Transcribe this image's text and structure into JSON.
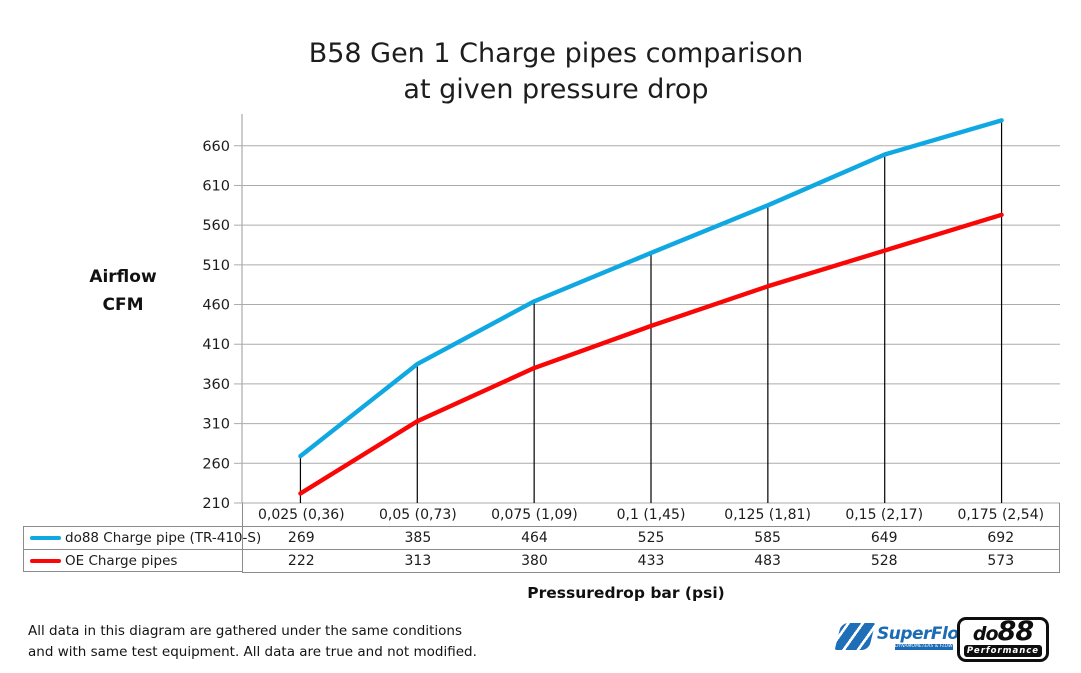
{
  "title": {
    "line1": "B58 Gen 1 Charge pipes comparison",
    "line2": "at given pressure drop"
  },
  "y_axis": {
    "label_line1": "Airflow",
    "label_line2": "CFM"
  },
  "x_axis": {
    "title": "Pressuredrop bar (psi)"
  },
  "footer": {
    "line1": "All data in this diagram are gathered under the same conditions",
    "line2": "and with same test equipment. All data are true and not modified."
  },
  "logos": {
    "superflow": {
      "name": "SuperFlow",
      "tagline": "DYNAMOMETERS & FLOWBENCHES",
      "color": "#1b6cb4"
    },
    "do88": {
      "prefix": "do",
      "digits": "88",
      "sub": "Performance"
    }
  },
  "chart_data": {
    "type": "line",
    "title": "B58 Gen 1 Charge pipes comparison at given pressure drop",
    "xlabel": "Pressuredrop bar (psi)",
    "ylabel": "Airflow CFM",
    "categories": [
      "0,025 (0,36)",
      "0,05 (0,73)",
      "0,075 (1,09)",
      "0,1 (1,45)",
      "0,125 (1,81)",
      "0,15 (2,17)",
      "0,175 (2,54)"
    ],
    "series": [
      {
        "name": "do88 Charge pipe (TR-410-S)",
        "color": "#10a8e2",
        "values": [
          269,
          385,
          464,
          525,
          585,
          649,
          692
        ]
      },
      {
        "name": "OE Charge pipes",
        "color": "#f90606",
        "values": [
          222,
          313,
          380,
          433,
          483,
          528,
          573
        ]
      }
    ],
    "ylim": [
      210,
      700
    ],
    "y_ticks": [
      210,
      260,
      310,
      360,
      410,
      460,
      510,
      560,
      610,
      660
    ],
    "grid": true,
    "drop_lines_to_first_series": true,
    "legend_position": "table-left",
    "colors": {
      "gridline": "#ababab",
      "axis": "#ababab",
      "drop_line": "#000000",
      "table_border": "#8c8c8c",
      "text": "#1c1c1c"
    }
  }
}
